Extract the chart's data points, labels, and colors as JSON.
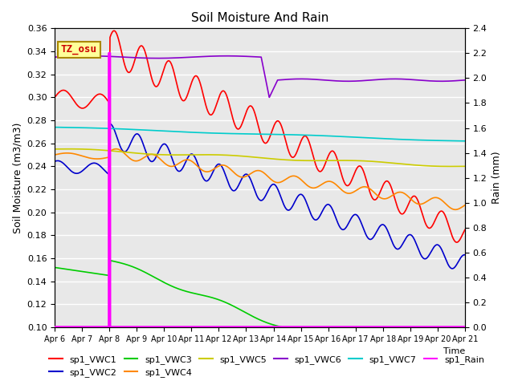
{
  "title": "Soil Moisture And Rain",
  "xlabel": "Time",
  "ylabel_left": "Soil Moisture (m3/m3)",
  "ylabel_right": "Rain (mm)",
  "ylim_left": [
    0.1,
    0.36
  ],
  "ylim_right": [
    0.0,
    2.4
  ],
  "annotation_text": "TZ_osu",
  "annotation_color": "#cc0000",
  "annotation_bg": "#ffff99",
  "annotation_border": "#aa8800",
  "bg_color": "#e8e8e8",
  "series_colors": {
    "sp1_VWC1": "#ff0000",
    "sp1_VWC2": "#0000cc",
    "sp1_VWC3": "#00cc00",
    "sp1_VWC4": "#ff8800",
    "sp1_VWC5": "#cccc00",
    "sp1_VWC6": "#8800cc",
    "sp1_VWC7": "#00cccc",
    "sp1_Rain": "#ff00ff"
  },
  "xtick_labels": [
    "Apr 6",
    "Apr 7",
    "Apr 8",
    "Apr 9",
    "Apr 10",
    "Apr 11",
    "Apr 12",
    "Apr 13",
    "Apr 14",
    "Apr 15",
    "Apr 16",
    "Apr 17",
    "Apr 18",
    "Apr 19",
    "Apr 20",
    "Apr 21"
  ],
  "yticks_left": [
    0.1,
    0.12,
    0.14,
    0.16,
    0.18,
    0.2,
    0.22,
    0.24,
    0.26,
    0.28,
    0.3,
    0.32,
    0.34,
    0.36
  ],
  "yticks_right": [
    0.0,
    0.2,
    0.4,
    0.6,
    0.8,
    1.0,
    1.2,
    1.4,
    1.6,
    1.8,
    2.0,
    2.2,
    2.4
  ],
  "n_days": 15
}
